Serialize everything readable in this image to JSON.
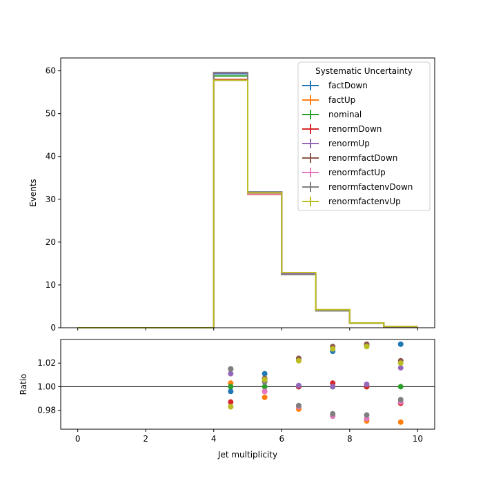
{
  "chart_data": [
    {
      "type": "line",
      "step": true,
      "xlabel": "",
      "ylabel": "Events",
      "xlim": [
        -0.5,
        10.5
      ],
      "ylim": [
        0,
        63
      ],
      "x_ticks": [
        0,
        2,
        4,
        6,
        8,
        10
      ],
      "y_ticks": [
        0,
        10,
        20,
        30,
        40,
        50,
        60
      ],
      "grid": false,
      "legend": {
        "title": "Systematic Uncertainty",
        "position": "top-right"
      },
      "bin_edges": [
        0,
        1,
        2,
        3,
        4,
        5,
        6,
        7,
        8,
        9,
        10
      ],
      "series": [
        {
          "name": "factDown",
          "color": "#1f77b4",
          "values": [
            0,
            0,
            0,
            0,
            59.3,
            31.7,
            12.6,
            4.1,
            1.1,
            0.3
          ]
        },
        {
          "name": "factUp",
          "color": "#ff7f0e",
          "values": [
            0,
            0,
            0,
            0,
            58.0,
            31.1,
            12.4,
            4.0,
            1.05,
            0.28
          ]
        },
        {
          "name": "nominal",
          "color": "#2ca02c",
          "values": [
            0,
            0,
            0,
            0,
            58.8,
            31.4,
            12.6,
            4.05,
            1.08,
            0.29
          ]
        },
        {
          "name": "renormDown",
          "color": "#d62728",
          "values": [
            0,
            0,
            0,
            0,
            58.0,
            31.3,
            12.6,
            4.05,
            1.08,
            0.29
          ]
        },
        {
          "name": "renormUp",
          "color": "#9467bd",
          "values": [
            0,
            0,
            0,
            0,
            59.5,
            31.6,
            12.6,
            4.05,
            1.08,
            0.29
          ]
        },
        {
          "name": "renormfactDown",
          "color": "#8c564b",
          "values": [
            0,
            0,
            0,
            0,
            59.6,
            31.6,
            12.9,
            4.2,
            1.12,
            0.3
          ]
        },
        {
          "name": "renormfactUp",
          "color": "#e377c2",
          "values": [
            0,
            0,
            0,
            0,
            57.8,
            31.2,
            12.4,
            3.95,
            1.05,
            0.28
          ]
        },
        {
          "name": "renormfactenvDown",
          "color": "#7f7f7f",
          "values": [
            0,
            0,
            0,
            0,
            59.6,
            31.7,
            12.4,
            3.95,
            1.05,
            0.28
          ]
        },
        {
          "name": "renormfactenvUp",
          "color": "#bcbd22",
          "values": [
            0,
            0,
            0,
            0,
            57.8,
            31.5,
            12.9,
            4.2,
            1.12,
            0.3
          ]
        }
      ]
    },
    {
      "type": "scatter",
      "xlabel": "Jet multiplicity",
      "ylabel": "Ratio",
      "xlim": [
        -0.5,
        10.5
      ],
      "ylim": [
        0.964,
        1.04
      ],
      "x_ticks": [
        0,
        2,
        4,
        6,
        8,
        10
      ],
      "y_ticks": [
        0.98,
        1.0,
        1.02
      ],
      "y_tick_labels": [
        "0.98",
        "1.00",
        "1.02"
      ],
      "reference_line": 1.0,
      "x": [
        4.5,
        5.5,
        6.5,
        7.5,
        8.5,
        9.5
      ],
      "series": [
        {
          "name": "factDown",
          "color": "#1f77b4",
          "values": [
            0.996,
            1.011,
            1.0,
            1.03,
            1.035,
            1.036
          ]
        },
        {
          "name": "factUp",
          "color": "#ff7f0e",
          "values": [
            1.003,
            0.991,
            0.981,
            0.975,
            0.971,
            0.97
          ]
        },
        {
          "name": "nominal",
          "color": "#2ca02c",
          "values": [
            1.0,
            1.0,
            1.0,
            1.0,
            1.0,
            1.0
          ]
        },
        {
          "name": "renormDown",
          "color": "#d62728",
          "values": [
            0.987,
            0.996,
            1.0,
            1.003,
            1.0,
            0.986
          ]
        },
        {
          "name": "renormUp",
          "color": "#9467bd",
          "values": [
            1.011,
            1.006,
            1.001,
            1.0,
            1.002,
            1.016
          ]
        },
        {
          "name": "renormfactDown",
          "color": "#8c564b",
          "values": [
            1.015,
            1.007,
            1.024,
            1.034,
            1.036,
            1.022
          ]
        },
        {
          "name": "renormfactUp",
          "color": "#e377c2",
          "values": [
            0.983,
            0.996,
            0.983,
            0.975,
            0.973,
            0.987
          ]
        },
        {
          "name": "renormfactenvDown",
          "color": "#7f7f7f",
          "values": [
            1.015,
            1.004,
            0.984,
            0.977,
            0.976,
            0.989
          ]
        },
        {
          "name": "renormfactenvUp",
          "color": "#bcbd22",
          "values": [
            0.983,
            1.006,
            1.022,
            1.032,
            1.034,
            1.02
          ]
        }
      ]
    }
  ]
}
